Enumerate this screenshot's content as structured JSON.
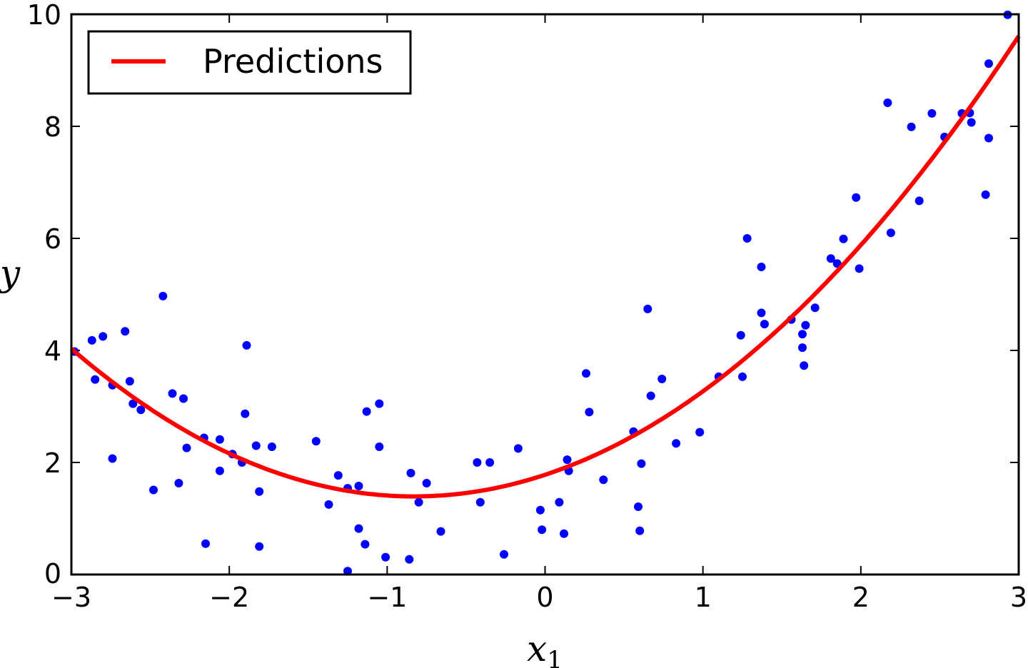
{
  "chart_data": {
    "type": "scatter",
    "title": "",
    "xlabel": "x",
    "xlabel_subscript": "1",
    "ylabel": "y",
    "xlim": [
      -3,
      3
    ],
    "ylim": [
      0,
      10
    ],
    "xticks": [
      -3,
      -2,
      -1,
      0,
      1,
      2,
      3
    ],
    "xtick_labels": [
      "−3",
      "−2",
      "−1",
      "0",
      "1",
      "2",
      "3"
    ],
    "yticks": [
      0,
      2,
      4,
      6,
      8,
      10
    ],
    "ytick_labels": [
      "0",
      "2",
      "4",
      "6",
      "8",
      "10"
    ],
    "grid": false,
    "legend_position": "top-left",
    "series": [
      {
        "name": "Predictions",
        "kind": "line",
        "color": "#ff0000",
        "model": {
          "intercept": 1.78,
          "coef_x": 0.93,
          "coef_x2": 0.56
        },
        "x_range": [
          -3,
          3
        ]
      },
      {
        "kind": "scatter",
        "color": "#0000ff",
        "points": [
          [
            -2.98,
            3.98
          ],
          [
            -2.87,
            4.18
          ],
          [
            -2.85,
            3.48
          ],
          [
            -2.8,
            4.25
          ],
          [
            -2.74,
            3.38
          ],
          [
            -2.74,
            2.07
          ],
          [
            -2.66,
            4.34
          ],
          [
            -2.63,
            3.45
          ],
          [
            -2.61,
            3.05
          ],
          [
            -2.56,
            2.94
          ],
          [
            -2.48,
            1.51
          ],
          [
            -2.42,
            4.97
          ],
          [
            -2.36,
            3.23
          ],
          [
            -2.32,
            1.63
          ],
          [
            -2.29,
            3.14
          ],
          [
            -2.27,
            2.26
          ],
          [
            -2.16,
            2.44
          ],
          [
            -2.15,
            0.55
          ],
          [
            -2.06,
            2.41
          ],
          [
            -2.06,
            1.85
          ],
          [
            -1.98,
            2.15
          ],
          [
            -1.92,
            2.0
          ],
          [
            -1.9,
            2.87
          ],
          [
            -1.89,
            4.09
          ],
          [
            -1.83,
            2.3
          ],
          [
            -1.81,
            1.48
          ],
          [
            -1.81,
            0.5
          ],
          [
            -1.73,
            2.28
          ],
          [
            -1.45,
            2.38
          ],
          [
            -1.37,
            1.25
          ],
          [
            -1.31,
            1.77
          ],
          [
            -1.25,
            1.54
          ],
          [
            -1.25,
            0.06
          ],
          [
            -1.18,
            1.58
          ],
          [
            -1.18,
            0.82
          ],
          [
            -1.14,
            0.54
          ],
          [
            -1.13,
            2.91
          ],
          [
            -1.05,
            3.05
          ],
          [
            -1.05,
            2.28
          ],
          [
            -1.01,
            0.31
          ],
          [
            -0.86,
            0.27
          ],
          [
            -0.85,
            1.81
          ],
          [
            -0.8,
            1.29
          ],
          [
            -0.75,
            1.63
          ],
          [
            -0.66,
            0.77
          ],
          [
            -0.43,
            2.0
          ],
          [
            -0.41,
            1.29
          ],
          [
            -0.35,
            2.0
          ],
          [
            -0.26,
            0.36
          ],
          [
            -0.17,
            2.25
          ],
          [
            -0.03,
            1.15
          ],
          [
            -0.02,
            0.8
          ],
          [
            0.09,
            1.29
          ],
          [
            0.12,
            0.73
          ],
          [
            0.14,
            2.05
          ],
          [
            0.15,
            1.85
          ],
          [
            0.26,
            3.59
          ],
          [
            0.28,
            2.9
          ],
          [
            0.37,
            1.69
          ],
          [
            0.56,
            2.55
          ],
          [
            0.59,
            1.21
          ],
          [
            0.6,
            0.78
          ],
          [
            0.61,
            1.98
          ],
          [
            0.65,
            4.74
          ],
          [
            0.67,
            3.19
          ],
          [
            0.74,
            3.49
          ],
          [
            0.83,
            2.34
          ],
          [
            0.98,
            2.54
          ],
          [
            1.1,
            3.53
          ],
          [
            1.24,
            4.27
          ],
          [
            1.25,
            3.53
          ],
          [
            1.28,
            6.0
          ],
          [
            1.37,
            5.49
          ],
          [
            1.37,
            4.67
          ],
          [
            1.39,
            4.47
          ],
          [
            1.56,
            4.55
          ],
          [
            1.63,
            4.29
          ],
          [
            1.63,
            4.05
          ],
          [
            1.64,
            3.73
          ],
          [
            1.65,
            4.45
          ],
          [
            1.71,
            4.76
          ],
          [
            1.81,
            5.64
          ],
          [
            1.85,
            5.55
          ],
          [
            1.89,
            5.99
          ],
          [
            1.97,
            6.73
          ],
          [
            1.99,
            5.46
          ],
          [
            2.17,
            8.42
          ],
          [
            2.19,
            6.1
          ],
          [
            2.32,
            7.99
          ],
          [
            2.37,
            6.67
          ],
          [
            2.45,
            8.23
          ],
          [
            2.53,
            7.81
          ],
          [
            2.64,
            8.23
          ],
          [
            2.69,
            8.24
          ],
          [
            2.7,
            8.07
          ],
          [
            2.79,
            6.78
          ],
          [
            2.81,
            7.79
          ],
          [
            2.81,
            9.12
          ],
          [
            2.93,
            9.99
          ]
        ]
      }
    ]
  }
}
